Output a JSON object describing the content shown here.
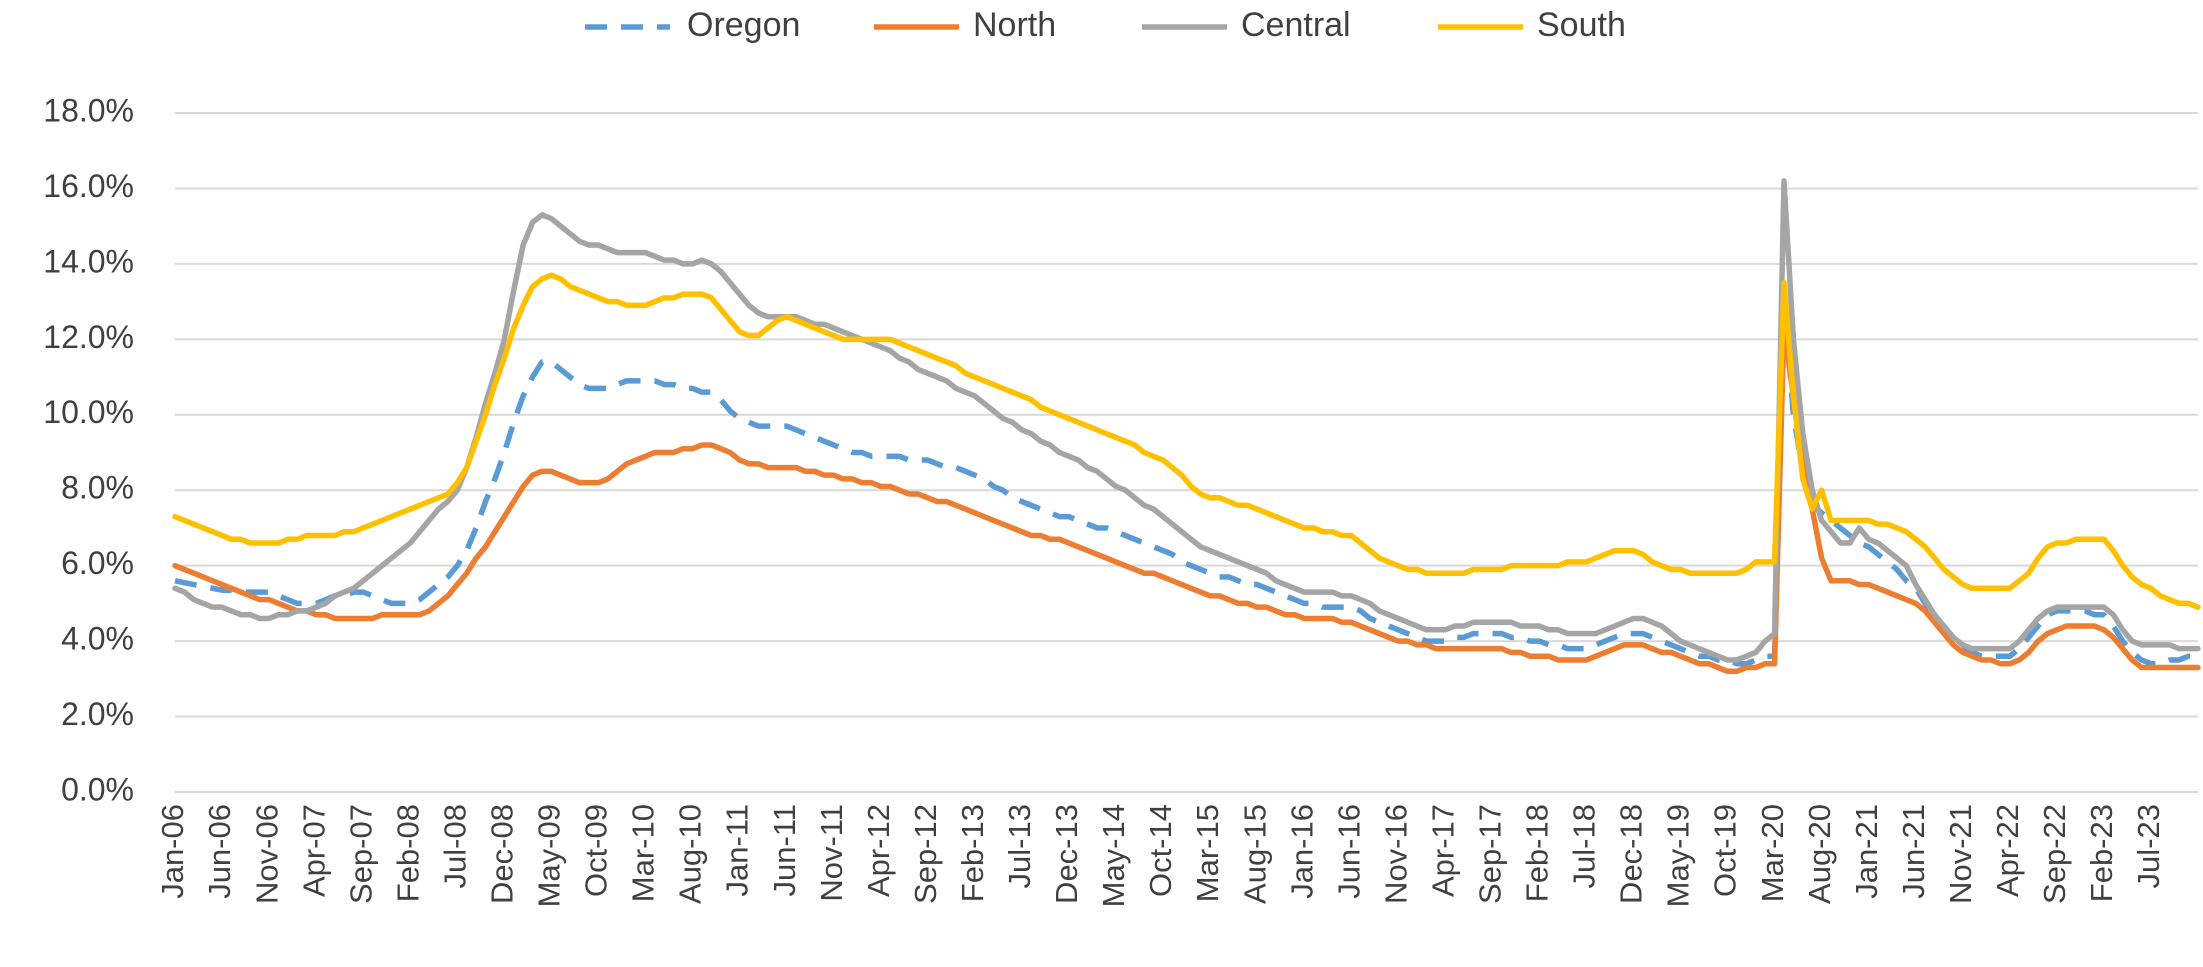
{
  "chart_data": {
    "type": "line",
    "categories": [
      "Jan-06",
      null,
      null,
      null,
      null,
      "Jun-06",
      null,
      null,
      null,
      null,
      "Nov-06",
      null,
      null,
      null,
      null,
      "Apr-07",
      null,
      null,
      null,
      null,
      "Sep-07",
      null,
      null,
      null,
      null,
      "Feb-08",
      null,
      null,
      null,
      null,
      "Jul-08",
      null,
      null,
      null,
      null,
      "Dec-08",
      null,
      null,
      null,
      null,
      "May-09",
      null,
      null,
      null,
      null,
      "Oct-09",
      null,
      null,
      null,
      null,
      "Mar-10",
      null,
      null,
      null,
      null,
      "Aug-10",
      null,
      null,
      null,
      null,
      "Jan-11",
      null,
      null,
      null,
      null,
      "Jun-11",
      null,
      null,
      null,
      null,
      "Nov-11",
      null,
      null,
      null,
      null,
      "Apr-12",
      null,
      null,
      null,
      null,
      "Sep-12",
      null,
      null,
      null,
      null,
      "Feb-13",
      null,
      null,
      null,
      null,
      "Jul-13",
      null,
      null,
      null,
      null,
      "Dec-13",
      null,
      null,
      null,
      null,
      "May-14",
      null,
      null,
      null,
      null,
      "Oct-14",
      null,
      null,
      null,
      null,
      "Mar-15",
      null,
      null,
      null,
      null,
      "Aug-15",
      null,
      null,
      null,
      null,
      "Jan-16",
      null,
      null,
      null,
      null,
      "Jun-16",
      null,
      null,
      null,
      null,
      "Nov-16",
      null,
      null,
      null,
      null,
      "Apr-17",
      null,
      null,
      null,
      null,
      "Sep-17",
      null,
      null,
      null,
      null,
      "Feb-18",
      null,
      null,
      null,
      null,
      "Jul-18",
      null,
      null,
      null,
      null,
      "Dec-18",
      null,
      null,
      null,
      null,
      "May-19",
      null,
      null,
      null,
      null,
      "Oct-19",
      null,
      null,
      null,
      null,
      "Mar-20",
      null,
      null,
      null,
      null,
      "Aug-20",
      null,
      null,
      null,
      null,
      "Jan-21",
      null,
      null,
      null,
      null,
      "Jun-21",
      null,
      null,
      null,
      null,
      "Nov-21",
      null,
      null,
      null,
      null,
      "Apr-22",
      null,
      null,
      null,
      null,
      "Sep-22",
      null,
      null,
      null,
      null,
      "Feb-23",
      null,
      null,
      null,
      null,
      "Jul-23",
      null,
      null,
      null,
      null,
      null
    ],
    "series": [
      {
        "name": "Oregon",
        "color": "#5b9bd5",
        "dashed": true,
        "values": [
          5.6,
          5.55,
          5.5,
          5.45,
          5.4,
          5.35,
          5.35,
          5.3,
          5.3,
          5.3,
          5.3,
          5.2,
          5.1,
          5.0,
          5.0,
          5.0,
          5.1,
          5.2,
          5.2,
          5.3,
          5.3,
          5.2,
          5.1,
          5.0,
          5.0,
          5.0,
          5.1,
          5.3,
          5.5,
          5.7,
          6.0,
          6.4,
          7.0,
          7.7,
          8.3,
          9.0,
          9.8,
          10.5,
          11.0,
          11.4,
          11.4,
          11.2,
          11.0,
          10.8,
          10.7,
          10.7,
          10.7,
          10.8,
          10.9,
          10.9,
          10.9,
          10.9,
          10.8,
          10.8,
          10.7,
          10.7,
          10.6,
          10.6,
          10.4,
          10.1,
          9.9,
          9.8,
          9.7,
          9.7,
          9.7,
          9.7,
          9.6,
          9.5,
          9.4,
          9.3,
          9.2,
          9.1,
          9.0,
          9.0,
          8.9,
          8.9,
          8.9,
          8.9,
          8.8,
          8.8,
          8.8,
          8.7,
          8.6,
          8.6,
          8.5,
          8.4,
          8.3,
          8.1,
          8.0,
          7.8,
          7.7,
          7.6,
          7.5,
          7.4,
          7.3,
          7.3,
          7.2,
          7.1,
          7.0,
          7.0,
          6.9,
          6.8,
          6.7,
          6.6,
          6.5,
          6.4,
          6.3,
          6.1,
          6.0,
          5.9,
          5.8,
          5.7,
          5.7,
          5.6,
          5.5,
          5.5,
          5.4,
          5.3,
          5.2,
          5.1,
          5.0,
          5.0,
          4.9,
          4.9,
          4.9,
          4.9,
          4.8,
          4.6,
          4.5,
          4.4,
          4.3,
          4.2,
          4.1,
          4.0,
          4.0,
          4.0,
          4.1,
          4.1,
          4.2,
          4.2,
          4.2,
          4.2,
          4.1,
          4.1,
          4.0,
          4.0,
          3.9,
          3.9,
          3.8,
          3.8,
          3.8,
          3.9,
          4.0,
          4.1,
          4.2,
          4.2,
          4.2,
          4.1,
          4.0,
          3.9,
          3.8,
          3.7,
          3.6,
          3.6,
          3.5,
          3.5,
          3.4,
          3.4,
          3.5,
          3.6,
          3.6,
          13.2,
          10.0,
          8.5,
          7.6,
          7.4,
          7.2,
          7.0,
          6.8,
          6.6,
          6.5,
          6.3,
          6.1,
          5.9,
          5.6,
          5.4,
          5.0,
          4.6,
          4.3,
          4.0,
          3.8,
          3.7,
          3.6,
          3.6,
          3.6,
          3.6,
          3.8,
          4.1,
          4.4,
          4.7,
          4.8,
          4.8,
          4.8,
          4.8,
          4.7,
          4.7,
          4.4,
          4.0,
          3.7,
          3.5,
          3.4,
          3.4,
          3.5,
          3.5,
          3.6,
          3.6
        ]
      },
      {
        "name": "North",
        "color": "#ed7d31",
        "values": [
          6.0,
          5.9,
          5.8,
          5.7,
          5.6,
          5.5,
          5.4,
          5.3,
          5.2,
          5.1,
          5.1,
          5.0,
          4.9,
          4.8,
          4.8,
          4.7,
          4.7,
          4.6,
          4.6,
          4.6,
          4.6,
          4.6,
          4.7,
          4.7,
          4.7,
          4.7,
          4.7,
          4.8,
          5.0,
          5.2,
          5.5,
          5.8,
          6.2,
          6.5,
          6.9,
          7.3,
          7.7,
          8.1,
          8.4,
          8.5,
          8.5,
          8.4,
          8.3,
          8.2,
          8.2,
          8.2,
          8.3,
          8.5,
          8.7,
          8.8,
          8.9,
          9.0,
          9.0,
          9.0,
          9.1,
          9.1,
          9.2,
          9.2,
          9.1,
          9.0,
          8.8,
          8.7,
          8.7,
          8.6,
          8.6,
          8.6,
          8.6,
          8.5,
          8.5,
          8.4,
          8.4,
          8.3,
          8.3,
          8.2,
          8.2,
          8.1,
          8.1,
          8.0,
          7.9,
          7.9,
          7.8,
          7.7,
          7.7,
          7.6,
          7.5,
          7.4,
          7.3,
          7.2,
          7.1,
          7.0,
          6.9,
          6.8,
          6.8,
          6.7,
          6.7,
          6.6,
          6.5,
          6.4,
          6.3,
          6.2,
          6.1,
          6.0,
          5.9,
          5.8,
          5.8,
          5.7,
          5.6,
          5.5,
          5.4,
          5.3,
          5.2,
          5.2,
          5.1,
          5.0,
          5.0,
          4.9,
          4.9,
          4.8,
          4.7,
          4.7,
          4.6,
          4.6,
          4.6,
          4.6,
          4.5,
          4.5,
          4.4,
          4.3,
          4.2,
          4.1,
          4.0,
          4.0,
          3.9,
          3.9,
          3.8,
          3.8,
          3.8,
          3.8,
          3.8,
          3.8,
          3.8,
          3.8,
          3.7,
          3.7,
          3.6,
          3.6,
          3.6,
          3.5,
          3.5,
          3.5,
          3.5,
          3.6,
          3.7,
          3.8,
          3.9,
          3.9,
          3.9,
          3.8,
          3.7,
          3.7,
          3.6,
          3.5,
          3.4,
          3.4,
          3.3,
          3.2,
          3.2,
          3.3,
          3.3,
          3.4,
          3.4,
          12.3,
          10.5,
          8.7,
          7.5,
          6.2,
          5.6,
          5.6,
          5.6,
          5.5,
          5.5,
          5.4,
          5.3,
          5.2,
          5.1,
          5.0,
          4.8,
          4.5,
          4.2,
          3.9,
          3.7,
          3.6,
          3.5,
          3.5,
          3.4,
          3.4,
          3.5,
          3.7,
          4.0,
          4.2,
          4.3,
          4.4,
          4.4,
          4.4,
          4.4,
          4.3,
          4.1,
          3.8,
          3.5,
          3.3,
          3.3,
          3.3,
          3.3,
          3.3,
          3.3,
          3.3
        ]
      },
      {
        "name": "Central",
        "color": "#a5a5a5",
        "values": [
          5.4,
          5.3,
          5.1,
          5.0,
          4.9,
          4.9,
          4.8,
          4.7,
          4.7,
          4.6,
          4.6,
          4.7,
          4.7,
          4.8,
          4.8,
          4.9,
          5.0,
          5.2,
          5.3,
          5.4,
          5.6,
          5.8,
          6.0,
          6.2,
          6.4,
          6.6,
          6.9,
          7.2,
          7.5,
          7.7,
          8.0,
          8.6,
          9.4,
          10.3,
          11.1,
          12.0,
          13.3,
          14.5,
          15.1,
          15.3,
          15.2,
          15.0,
          14.8,
          14.6,
          14.5,
          14.5,
          14.4,
          14.3,
          14.3,
          14.3,
          14.3,
          14.2,
          14.1,
          14.1,
          14.0,
          14.0,
          14.1,
          14.0,
          13.8,
          13.5,
          13.2,
          12.9,
          12.7,
          12.6,
          12.6,
          12.6,
          12.6,
          12.5,
          12.4,
          12.4,
          12.3,
          12.2,
          12.1,
          12.0,
          11.9,
          11.8,
          11.7,
          11.5,
          11.4,
          11.2,
          11.1,
          11.0,
          10.9,
          10.7,
          10.6,
          10.5,
          10.3,
          10.1,
          9.9,
          9.8,
          9.6,
          9.5,
          9.3,
          9.2,
          9.0,
          8.9,
          8.8,
          8.6,
          8.5,
          8.3,
          8.1,
          8.0,
          7.8,
          7.6,
          7.5,
          7.3,
          7.1,
          6.9,
          6.7,
          6.5,
          6.4,
          6.3,
          6.2,
          6.1,
          6.0,
          5.9,
          5.8,
          5.6,
          5.5,
          5.4,
          5.3,
          5.3,
          5.3,
          5.3,
          5.2,
          5.2,
          5.1,
          5.0,
          4.8,
          4.7,
          4.6,
          4.5,
          4.4,
          4.3,
          4.3,
          4.3,
          4.4,
          4.4,
          4.5,
          4.5,
          4.5,
          4.5,
          4.5,
          4.4,
          4.4,
          4.4,
          4.3,
          4.3,
          4.2,
          4.2,
          4.2,
          4.2,
          4.3,
          4.4,
          4.5,
          4.6,
          4.6,
          4.5,
          4.4,
          4.2,
          4.0,
          3.9,
          3.8,
          3.7,
          3.6,
          3.5,
          3.5,
          3.6,
          3.7,
          4.0,
          4.2,
          16.2,
          12.0,
          9.5,
          8.0,
          7.2,
          6.9,
          6.6,
          6.6,
          7.0,
          6.7,
          6.6,
          6.4,
          6.2,
          6.0,
          5.5,
          5.1,
          4.7,
          4.4,
          4.1,
          3.9,
          3.8,
          3.8,
          3.8,
          3.8,
          3.8,
          4.0,
          4.3,
          4.6,
          4.8,
          4.9,
          4.9,
          4.9,
          4.9,
          4.9,
          4.9,
          4.7,
          4.3,
          4.0,
          3.9,
          3.9,
          3.9,
          3.9,
          3.8,
          3.8,
          3.8
        ]
      },
      {
        "name": "South",
        "color": "#ffc000",
        "values": [
          7.3,
          7.2,
          7.1,
          7.0,
          6.9,
          6.8,
          6.7,
          6.7,
          6.6,
          6.6,
          6.6,
          6.6,
          6.7,
          6.7,
          6.8,
          6.8,
          6.8,
          6.8,
          6.9,
          6.9,
          7.0,
          7.1,
          7.2,
          7.3,
          7.4,
          7.5,
          7.6,
          7.7,
          7.8,
          7.9,
          8.2,
          8.6,
          9.3,
          10.0,
          10.8,
          11.5,
          12.3,
          12.9,
          13.4,
          13.6,
          13.7,
          13.6,
          13.4,
          13.3,
          13.2,
          13.1,
          13.0,
          13.0,
          12.9,
          12.9,
          12.9,
          13.0,
          13.1,
          13.1,
          13.2,
          13.2,
          13.2,
          13.1,
          12.8,
          12.5,
          12.2,
          12.1,
          12.1,
          12.3,
          12.5,
          12.6,
          12.5,
          12.4,
          12.3,
          12.2,
          12.1,
          12.0,
          12.0,
          12.0,
          12.0,
          12.0,
          12.0,
          11.9,
          11.8,
          11.7,
          11.6,
          11.5,
          11.4,
          11.3,
          11.1,
          11.0,
          10.9,
          10.8,
          10.7,
          10.6,
          10.5,
          10.4,
          10.2,
          10.1,
          10.0,
          9.9,
          9.8,
          9.7,
          9.6,
          9.5,
          9.4,
          9.3,
          9.2,
          9.0,
          8.9,
          8.8,
          8.6,
          8.4,
          8.1,
          7.9,
          7.8,
          7.8,
          7.7,
          7.6,
          7.6,
          7.5,
          7.4,
          7.3,
          7.2,
          7.1,
          7.0,
          7.0,
          6.9,
          6.9,
          6.8,
          6.8,
          6.6,
          6.4,
          6.2,
          6.1,
          6.0,
          5.9,
          5.9,
          5.8,
          5.8,
          5.8,
          5.8,
          5.8,
          5.9,
          5.9,
          5.9,
          5.9,
          6.0,
          6.0,
          6.0,
          6.0,
          6.0,
          6.0,
          6.1,
          6.1,
          6.1,
          6.2,
          6.3,
          6.4,
          6.4,
          6.4,
          6.3,
          6.1,
          6.0,
          5.9,
          5.9,
          5.8,
          5.8,
          5.8,
          5.8,
          5.8,
          5.8,
          5.9,
          6.1,
          6.1,
          6.1,
          13.5,
          10.5,
          8.3,
          7.5,
          8.0,
          7.2,
          7.2,
          7.2,
          7.2,
          7.2,
          7.1,
          7.1,
          7.0,
          6.9,
          6.7,
          6.5,
          6.2,
          5.9,
          5.7,
          5.5,
          5.4,
          5.4,
          5.4,
          5.4,
          5.4,
          5.6,
          5.8,
          6.2,
          6.5,
          6.6,
          6.6,
          6.7,
          6.7,
          6.7,
          6.7,
          6.4,
          6.0,
          5.7,
          5.5,
          5.4,
          5.2,
          5.1,
          5.0,
          5.0,
          4.9
        ]
      }
    ],
    "ylim": [
      0,
      18
    ],
    "yticks": [
      {
        "value": 0,
        "label": "0.0%"
      },
      {
        "value": 2,
        "label": "2.0%"
      },
      {
        "value": 4,
        "label": "4.0%"
      },
      {
        "value": 6,
        "label": "6.0%"
      },
      {
        "value": 8,
        "label": "8.0%"
      },
      {
        "value": 10,
        "label": "10.0%"
      },
      {
        "value": 12,
        "label": "12.0%"
      },
      {
        "value": 14,
        "label": "14.0%"
      },
      {
        "value": 16,
        "label": "16.0%"
      },
      {
        "value": 18,
        "label": "18.0%"
      }
    ],
    "grid": true,
    "legend": "top"
  }
}
